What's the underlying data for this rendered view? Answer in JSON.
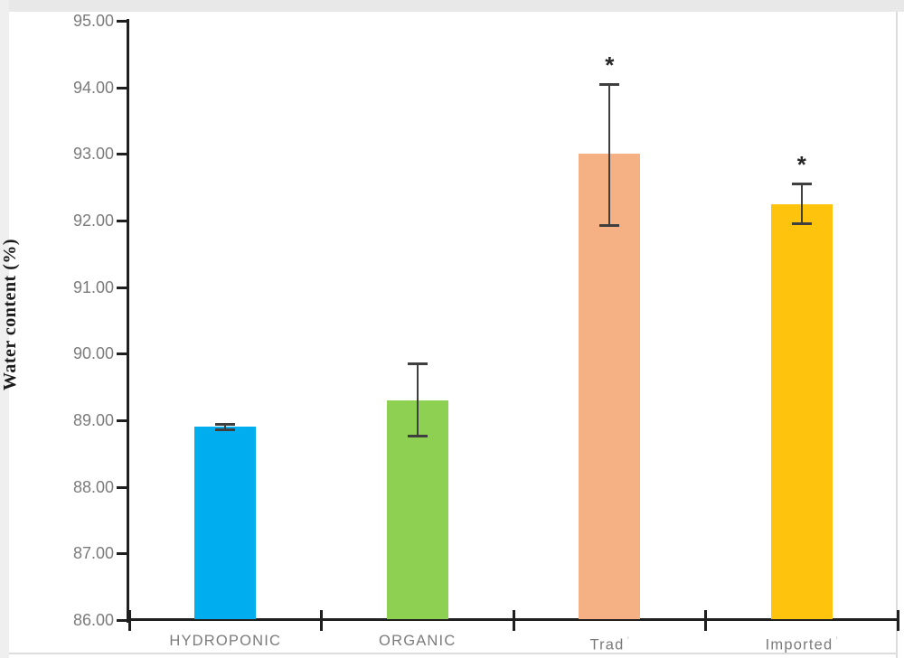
{
  "chart_data": {
    "type": "bar",
    "title": "",
    "xlabel": "",
    "ylabel": "Water content (%)",
    "categories": [
      "HYDROPONIC",
      "ORGANIC",
      "Trad",
      "Imported"
    ],
    "category_suffixes": [
      "",
      "",
      "’",
      "’"
    ],
    "values": [
      88.9,
      89.3,
      93.0,
      92.25
    ],
    "error_low": [
      88.85,
      88.75,
      91.92,
      91.95
    ],
    "error_high": [
      88.95,
      89.85,
      94.05,
      92.55
    ],
    "significance": [
      "",
      "",
      "*",
      "*"
    ],
    "bar_colors": [
      "#00AEEF",
      "#8ED051",
      "#F5B183",
      "#FEC30D"
    ],
    "ylim": [
      86,
      95
    ],
    "ytick_step": 1,
    "ytick_labels": [
      "86.00",
      "87.00",
      "88.00",
      "89.00",
      "90.00",
      "91.00",
      "92.00",
      "93.00",
      "94.00",
      "95.00"
    ],
    "grid": false,
    "legend": "none",
    "axis_color": "#1f1f1f",
    "tick_label_color": "#7b7b7b",
    "error_bar_color": "#3f3f3f"
  }
}
